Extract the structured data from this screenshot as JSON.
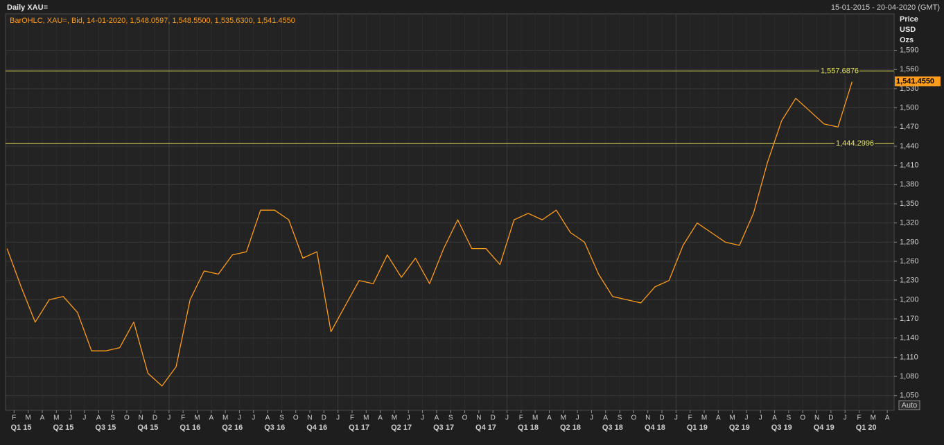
{
  "chart_data": {
    "type": "line",
    "title": "Daily XAU=",
    "date_range": "15-01-2015 - 20-04-2020 (GMT)",
    "legend_text": "BarOHLC, XAU=, Bid, 14-01-2020, 1,548.0597, 1,548.5500, 1,535.6300, 1,541.4550",
    "axis_header": [
      "Price",
      "USD",
      "Ozs"
    ],
    "auto_button": "Auto",
    "ylim": [
      1027,
      1647
    ],
    "yticks": [
      {
        "value": 1050,
        "label": "1,050"
      },
      {
        "value": 1080,
        "label": "1,080"
      },
      {
        "value": 1110,
        "label": "1,110"
      },
      {
        "value": 1140,
        "label": "1,140"
      },
      {
        "value": 1170,
        "label": "1,170"
      },
      {
        "value": 1200,
        "label": "1,200"
      },
      {
        "value": 1230,
        "label": "1,230"
      },
      {
        "value": 1260,
        "label": "1,260"
      },
      {
        "value": 1290,
        "label": "1,290"
      },
      {
        "value": 1320,
        "label": "1,320"
      },
      {
        "value": 1350,
        "label": "1,350"
      },
      {
        "value": 1380,
        "label": "1,380"
      },
      {
        "value": 1410,
        "label": "1,410"
      },
      {
        "value": 1440,
        "label": "1,440"
      },
      {
        "value": 1470,
        "label": "1,470"
      },
      {
        "value": 1500,
        "label": "1,500"
      },
      {
        "value": 1530,
        "label": "1,530"
      },
      {
        "value": 1560,
        "label": "1,560"
      },
      {
        "value": 1590,
        "label": "1,590"
      }
    ],
    "xticks": [
      {
        "value": "2015-02",
        "label": "F"
      },
      {
        "value": "2015-03",
        "label": "M"
      },
      {
        "value": "2015-04",
        "label": "A"
      },
      {
        "value": "2015-05",
        "label": "M"
      },
      {
        "value": "2015-06",
        "label": "J"
      },
      {
        "value": "2015-07",
        "label": "J"
      },
      {
        "value": "2015-08",
        "label": "A"
      },
      {
        "value": "2015-09",
        "label": "S"
      },
      {
        "value": "2015-10",
        "label": "O"
      },
      {
        "value": "2015-11",
        "label": "N"
      },
      {
        "value": "2015-12",
        "label": "D"
      },
      {
        "value": "2016-01",
        "label": "J"
      },
      {
        "value": "2016-02",
        "label": "F"
      },
      {
        "value": "2016-03",
        "label": "M"
      },
      {
        "value": "2016-04",
        "label": "A"
      },
      {
        "value": "2016-05",
        "label": "M"
      },
      {
        "value": "2016-06",
        "label": "J"
      },
      {
        "value": "2016-07",
        "label": "J"
      },
      {
        "value": "2016-08",
        "label": "A"
      },
      {
        "value": "2016-09",
        "label": "S"
      },
      {
        "value": "2016-10",
        "label": "O"
      },
      {
        "value": "2016-11",
        "label": "N"
      },
      {
        "value": "2016-12",
        "label": "D"
      },
      {
        "value": "2017-01",
        "label": "J"
      },
      {
        "value": "2017-02",
        "label": "F"
      },
      {
        "value": "2017-03",
        "label": "M"
      },
      {
        "value": "2017-04",
        "label": "A"
      },
      {
        "value": "2017-05",
        "label": "M"
      },
      {
        "value": "2017-06",
        "label": "J"
      },
      {
        "value": "2017-07",
        "label": "J"
      },
      {
        "value": "2017-08",
        "label": "A"
      },
      {
        "value": "2017-09",
        "label": "S"
      },
      {
        "value": "2017-10",
        "label": "O"
      },
      {
        "value": "2017-11",
        "label": "N"
      },
      {
        "value": "2017-12",
        "label": "D"
      },
      {
        "value": "2018-01",
        "label": "J"
      },
      {
        "value": "2018-02",
        "label": "F"
      },
      {
        "value": "2018-03",
        "label": "M"
      },
      {
        "value": "2018-04",
        "label": "A"
      },
      {
        "value": "2018-05",
        "label": "M"
      },
      {
        "value": "2018-06",
        "label": "J"
      },
      {
        "value": "2018-07",
        "label": "J"
      },
      {
        "value": "2018-08",
        "label": "A"
      },
      {
        "value": "2018-09",
        "label": "S"
      },
      {
        "value": "2018-10",
        "label": "O"
      },
      {
        "value": "2018-11",
        "label": "N"
      },
      {
        "value": "2018-12",
        "label": "D"
      },
      {
        "value": "2019-01",
        "label": "J"
      },
      {
        "value": "2019-02",
        "label": "F"
      },
      {
        "value": "2019-03",
        "label": "M"
      },
      {
        "value": "2019-04",
        "label": "A"
      },
      {
        "value": "2019-05",
        "label": "M"
      },
      {
        "value": "2019-06",
        "label": "J"
      },
      {
        "value": "2019-07",
        "label": "J"
      },
      {
        "value": "2019-08",
        "label": "A"
      },
      {
        "value": "2019-09",
        "label": "S"
      },
      {
        "value": "2019-10",
        "label": "O"
      },
      {
        "value": "2019-11",
        "label": "N"
      },
      {
        "value": "2019-12",
        "label": "D"
      },
      {
        "value": "2020-01",
        "label": "J"
      },
      {
        "value": "2020-02",
        "label": "F"
      },
      {
        "value": "2020-03",
        "label": "M"
      },
      {
        "value": "2020-04",
        "label": "A"
      }
    ],
    "quarter_labels": [
      {
        "value": "2015-02",
        "label": "Q1 15"
      },
      {
        "value": "2015-05",
        "label": "Q2 15"
      },
      {
        "value": "2015-08",
        "label": "Q3 15"
      },
      {
        "value": "2015-11",
        "label": "Q4 15"
      },
      {
        "value": "2016-02",
        "label": "Q1 16"
      },
      {
        "value": "2016-05",
        "label": "Q2 16"
      },
      {
        "value": "2016-08",
        "label": "Q3 16"
      },
      {
        "value": "2016-11",
        "label": "Q4 16"
      },
      {
        "value": "2017-02",
        "label": "Q1 17"
      },
      {
        "value": "2017-05",
        "label": "Q2 17"
      },
      {
        "value": "2017-08",
        "label": "Q3 17"
      },
      {
        "value": "2017-11",
        "label": "Q4 17"
      },
      {
        "value": "2018-02",
        "label": "Q1 18"
      },
      {
        "value": "2018-05",
        "label": "Q2 18"
      },
      {
        "value": "2018-08",
        "label": "Q3 18"
      },
      {
        "value": "2018-11",
        "label": "Q4 18"
      },
      {
        "value": "2019-02",
        "label": "Q1 19"
      },
      {
        "value": "2019-05",
        "label": "Q2 19"
      },
      {
        "value": "2019-08",
        "label": "Q3 19"
      },
      {
        "value": "2019-11",
        "label": "Q4 19"
      },
      {
        "value": "2020-02",
        "label": "Q1 20"
      }
    ],
    "x": [
      "2015-01",
      "2015-02",
      "2015-03",
      "2015-04",
      "2015-05",
      "2015-06",
      "2015-07",
      "2015-08",
      "2015-09",
      "2015-10",
      "2015-11",
      "2015-12",
      "2016-01",
      "2016-02",
      "2016-03",
      "2016-04",
      "2016-05",
      "2016-06",
      "2016-07",
      "2016-08",
      "2016-09",
      "2016-10",
      "2016-11",
      "2016-12",
      "2017-01",
      "2017-02",
      "2017-03",
      "2017-04",
      "2017-05",
      "2017-06",
      "2017-07",
      "2017-08",
      "2017-09",
      "2017-10",
      "2017-11",
      "2017-12",
      "2018-01",
      "2018-02",
      "2018-03",
      "2018-04",
      "2018-05",
      "2018-06",
      "2018-07",
      "2018-08",
      "2018-09",
      "2018-10",
      "2018-11",
      "2018-12",
      "2019-01",
      "2019-02",
      "2019-03",
      "2019-04",
      "2019-05",
      "2019-06",
      "2019-07",
      "2019-08",
      "2019-09",
      "2019-10",
      "2019-11",
      "2019-12",
      "2020-01"
    ],
    "series": [
      {
        "name": "XAU=",
        "color": "#ff9c1a",
        "values": [
          1280,
          1220,
          1165,
          1200,
          1205,
          1180,
          1120,
          1120,
          1125,
          1165,
          1085,
          1065,
          1095,
          1200,
          1245,
          1240,
          1270,
          1275,
          1340,
          1340,
          1325,
          1265,
          1275,
          1150,
          1190,
          1230,
          1225,
          1270,
          1235,
          1265,
          1225,
          1280,
          1325,
          1280,
          1280,
          1255,
          1325,
          1335,
          1325,
          1340,
          1305,
          1290,
          1240,
          1205,
          1200,
          1195,
          1220,
          1230,
          1285,
          1320,
          1305,
          1290,
          1285,
          1335,
          1415,
          1480,
          1515,
          1495,
          1475,
          1470,
          1541
        ]
      }
    ],
    "annotations": [
      {
        "value": 1557.6876,
        "label": "1,557.6876",
        "color": "#e8e858"
      },
      {
        "value": 1444.2996,
        "label": "1,444.2996",
        "color": "#e8e858"
      }
    ],
    "last_price": {
      "value": 1541.455,
      "label": "1,541.4550",
      "color": "#ff9c1a"
    },
    "grid": true
  }
}
